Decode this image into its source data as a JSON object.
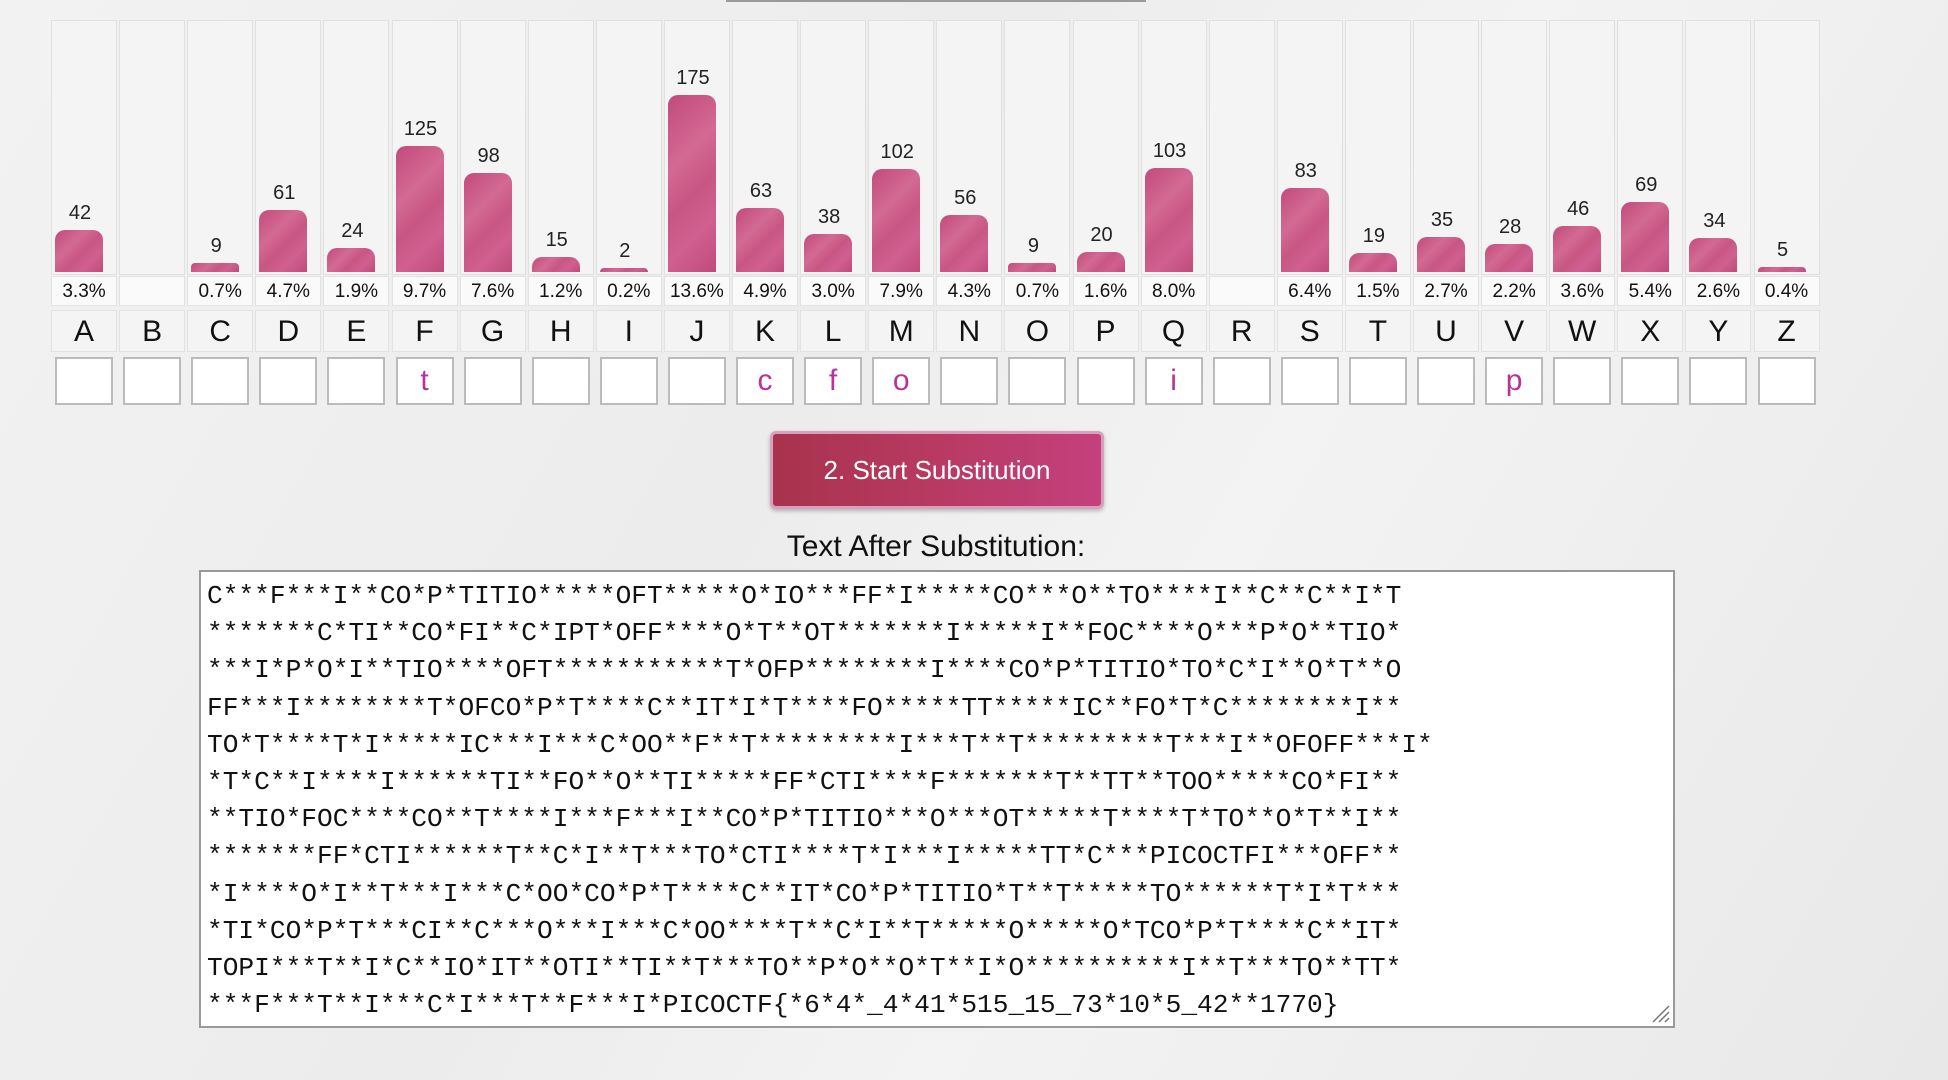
{
  "frequency": {
    "columns": [
      {
        "letter": "A",
        "count": "42",
        "percent": "3.3%",
        "value": 42,
        "sub": ""
      },
      {
        "letter": "B",
        "count": "",
        "percent": "",
        "value": 0,
        "sub": ""
      },
      {
        "letter": "C",
        "count": "9",
        "percent": "0.7%",
        "value": 9,
        "sub": ""
      },
      {
        "letter": "D",
        "count": "61",
        "percent": "4.7%",
        "value": 61,
        "sub": ""
      },
      {
        "letter": "E",
        "count": "24",
        "percent": "1.9%",
        "value": 24,
        "sub": ""
      },
      {
        "letter": "F",
        "count": "125",
        "percent": "9.7%",
        "value": 125,
        "sub": "t"
      },
      {
        "letter": "G",
        "count": "98",
        "percent": "7.6%",
        "value": 98,
        "sub": ""
      },
      {
        "letter": "H",
        "count": "15",
        "percent": "1.2%",
        "value": 15,
        "sub": ""
      },
      {
        "letter": "I",
        "count": "2",
        "percent": "0.2%",
        "value": 2,
        "sub": ""
      },
      {
        "letter": "J",
        "count": "175",
        "percent": "13.6%",
        "value": 175,
        "sub": ""
      },
      {
        "letter": "K",
        "count": "63",
        "percent": "4.9%",
        "value": 63,
        "sub": "c"
      },
      {
        "letter": "L",
        "count": "38",
        "percent": "3.0%",
        "value": 38,
        "sub": "f"
      },
      {
        "letter": "M",
        "count": "102",
        "percent": "7.9%",
        "value": 102,
        "sub": "o"
      },
      {
        "letter": "N",
        "count": "56",
        "percent": "4.3%",
        "value": 56,
        "sub": ""
      },
      {
        "letter": "O",
        "count": "9",
        "percent": "0.7%",
        "value": 9,
        "sub": ""
      },
      {
        "letter": "P",
        "count": "20",
        "percent": "1.6%",
        "value": 20,
        "sub": ""
      },
      {
        "letter": "Q",
        "count": "103",
        "percent": "8.0%",
        "value": 103,
        "sub": "i"
      },
      {
        "letter": "R",
        "count": "",
        "percent": "",
        "value": 0,
        "sub": ""
      },
      {
        "letter": "S",
        "count": "83",
        "percent": "6.4%",
        "value": 83,
        "sub": ""
      },
      {
        "letter": "T",
        "count": "19",
        "percent": "1.5%",
        "value": 19,
        "sub": ""
      },
      {
        "letter": "U",
        "count": "35",
        "percent": "2.7%",
        "value": 35,
        "sub": ""
      },
      {
        "letter": "V",
        "count": "28",
        "percent": "2.2%",
        "value": 28,
        "sub": "p"
      },
      {
        "letter": "W",
        "count": "46",
        "percent": "3.6%",
        "value": 46,
        "sub": ""
      },
      {
        "letter": "X",
        "count": "69",
        "percent": "5.4%",
        "value": 69,
        "sub": ""
      },
      {
        "letter": "Y",
        "count": "34",
        "percent": "2.6%",
        "value": 34,
        "sub": ""
      },
      {
        "letter": "Z",
        "count": "5",
        "percent": "0.4%",
        "value": 5,
        "sub": ""
      }
    ]
  },
  "actions": {
    "start_label": "2. Start Substitution"
  },
  "result": {
    "title": "Text After Substitution:",
    "lines": [
      "C***F***I**CO*P*TITIO*****OFT*****O*IO***FF*I*****CO***O**TO****I**C**C**I*T",
      "*******C*TI**CO*FI**C*IPT*OFF****O*T**OT*******I*****I**FOC****O***P*O**TIO*",
      "***I*P*O*I**TIO****OFT***********T*OFP********I****CO*P*TITIO*TO*C*I**O*T**O",
      "FF***I********T*OFCO*P*T****C**IT*I*T****FO*****TT*****IC**FO*T*C********I**",
      "TO*T****T*I*****IC***I***C*OO**F**T*********I***T**T*********T***I**OFOFF***I*",
      "*T*C**I****I******TI**FO**O**TI*****FF*CTI****F*******T**TT**TOO*****CO*FI**",
      "**TIO*FOC****CO**T****I***F***I**CO*P*TITIO***O***OT*****T****T*TO**O*T**I**",
      "*******FF*CTI******T**C*I**T***TO*CTI****T*I***I*****TT*C***PICOCTFI***OFF**",
      "*I****O*I**T***I***C*OO*CO*P*T****C**IT*CO*P*TITIO*T**T*****TO******T*I*T***",
      "*TI*CO*P*T***CI**C***O***I***C*OO****T**C*I**T*****O*****O*TCO*P*T****C**IT*",
      "TOPI***T**I*C**IO*IT**OTI**TI**T***TO**P*O**O*T**I*O**********I**T***TO**TT*",
      "***F***T**I***C*I***T**F***I*PICOCTF{*6*4*_4*41*515_15_73*10*5_42**1770}"
    ]
  },
  "colors": {
    "bar": "#c85683",
    "substitution_text": "#b8329c",
    "button": "#b83a62"
  }
}
